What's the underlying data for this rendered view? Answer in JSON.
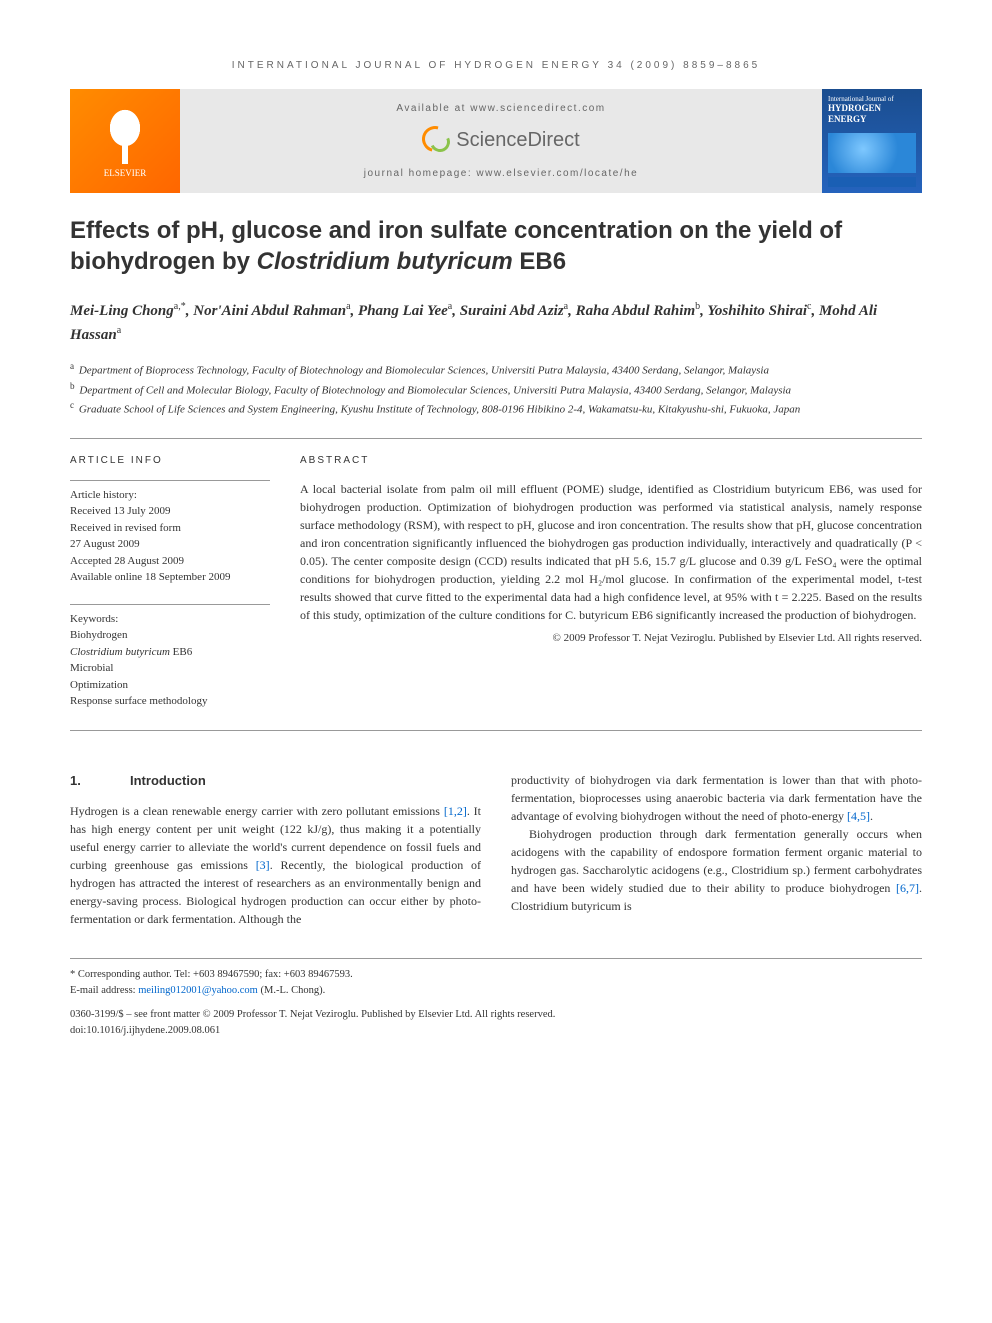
{
  "running_header": "INTERNATIONAL JOURNAL OF HYDROGEN ENERGY 34 (2009) 8859–8865",
  "banner": {
    "publisher_name": "ELSEVIER",
    "available_at": "Available at www.sciencedirect.com",
    "sd_brand": "ScienceDirect",
    "homepage": "journal homepage: www.elsevier.com/locate/he",
    "cover_supertitle": "International Journal of",
    "cover_title": "HYDROGEN ENERGY"
  },
  "title_prefix": "Effects of pH, glucose and iron sulfate concentration on the yield of biohydrogen by ",
  "title_species": "Clostridium butyricum",
  "title_suffix": " EB6",
  "authors_html": "Mei-Ling Chong<sup>a,*</sup>, Nor'Aini Abdul Rahman<sup>a</sup>, Phang Lai Yee<sup>a</sup>, Suraini Abd Aziz<sup>a</sup>, Raha Abdul Rahim<sup>b</sup>, Yoshihito Shirai<sup>c</sup>, Mohd Ali Hassan<sup>a</sup>",
  "affiliations": [
    {
      "sup": "a",
      "text": "Department of Bioprocess Technology, Faculty of Biotechnology and Biomolecular Sciences, Universiti Putra Malaysia, 43400 Serdang, Selangor, Malaysia"
    },
    {
      "sup": "b",
      "text": "Department of Cell and Molecular Biology, Faculty of Biotechnology and Biomolecular Sciences, Universiti Putra Malaysia, 43400 Serdang, Selangor, Malaysia"
    },
    {
      "sup": "c",
      "text": "Graduate School of Life Sciences and System Engineering, Kyushu Institute of Technology, 808-0196 Hibikino 2-4, Wakamatsu-ku, Kitakyushu-shi, Fukuoka, Japan"
    }
  ],
  "info": {
    "header": "ARTICLE INFO",
    "history_label": "Article history:",
    "history": [
      "Received 13 July 2009",
      "Received in revised form",
      "27 August 2009",
      "Accepted 28 August 2009",
      "Available online 18 September 2009"
    ],
    "keywords_label": "Keywords:",
    "keywords": [
      "Biohydrogen",
      "Clostridium butyricum EB6",
      "Microbial",
      "Optimization",
      "Response surface methodology"
    ]
  },
  "abstract": {
    "header": "ABSTRACT",
    "text": "A local bacterial isolate from palm oil mill effluent (POME) sludge, identified as Clostridium butyricum EB6, was used for biohydrogen production. Optimization of biohydrogen production was performed via statistical analysis, namely response surface methodology (RSM), with respect to pH, glucose and iron concentration. The results show that pH, glucose concentration and iron concentration significantly influenced the biohydrogen gas production individually, interactively and quadratically (P < 0.05). The center composite design (CCD) results indicated that pH 5.6, 15.7 g/L glucose and 0.39 g/L FeSO₄ were the optimal conditions for biohydrogen production, yielding 2.2 mol H₂/mol glucose. In confirmation of the experimental model, t-test results showed that curve fitted to the experimental data had a high confidence level, at 95% with t = 2.225. Based on the results of this study, optimization of the culture conditions for C. butyricum EB6 significantly increased the production of biohydrogen.",
    "copyright": "© 2009 Professor T. Nejat Veziroglu. Published by Elsevier Ltd. All rights reserved."
  },
  "intro": {
    "num": "1.",
    "title": "Introduction",
    "col1_p1_a": "Hydrogen is a clean renewable energy carrier with zero pollutant emissions ",
    "col1_p1_ref1": "[1,2]",
    "col1_p1_b": ". It has high energy content per unit weight (122 kJ/g), thus making it a potentially useful energy carrier to alleviate the world's current dependence on fossil fuels and curbing greenhouse gas emissions ",
    "col1_p1_ref2": "[3]",
    "col1_p1_c": ". Recently, the biological production of hydrogen has attracted the interest of researchers as an environmentally benign and energy-saving process. Biological hydrogen production can occur either by photo-fermentation or dark fermentation. Although the",
    "col2_p1_a": "productivity of biohydrogen via dark fermentation is lower than that with photo-fermentation, bioprocesses using anaerobic bacteria via dark fermentation have the advantage of evolving biohydrogen without the need of photo-energy ",
    "col2_p1_ref1": "[4,5]",
    "col2_p1_b": ".",
    "col2_p2_a": "Biohydrogen production through dark fermentation generally occurs when acidogens with the capability of endospore formation ferment organic material to hydrogen gas. Saccharolytic acidogens (e.g., Clostridium sp.) ferment carbohydrates and have been widely studied due to their ability to produce biohydrogen ",
    "col2_p2_ref1": "[6,7]",
    "col2_p2_b": ". Clostridium butyricum is"
  },
  "footer": {
    "corr": "* Corresponding author. Tel: +603 89467590; fax: +603 89467593.",
    "email_label": "E-mail address: ",
    "email": "meiling012001@yahoo.com",
    "email_name": " (M.-L. Chong).",
    "front_matter": "0360-3199/$ – see front matter © 2009 Professor T. Nejat Veziroglu. Published by Elsevier Ltd. All rights reserved.",
    "doi": "doi:10.1016/j.ijhydene.2009.08.061"
  },
  "colors": {
    "link": "#0066cc",
    "elsevier_orange": "#ff8c00",
    "rule": "#999999",
    "banner_bg": "#e8e8e8",
    "cover_blue": "#1a4d8f"
  }
}
